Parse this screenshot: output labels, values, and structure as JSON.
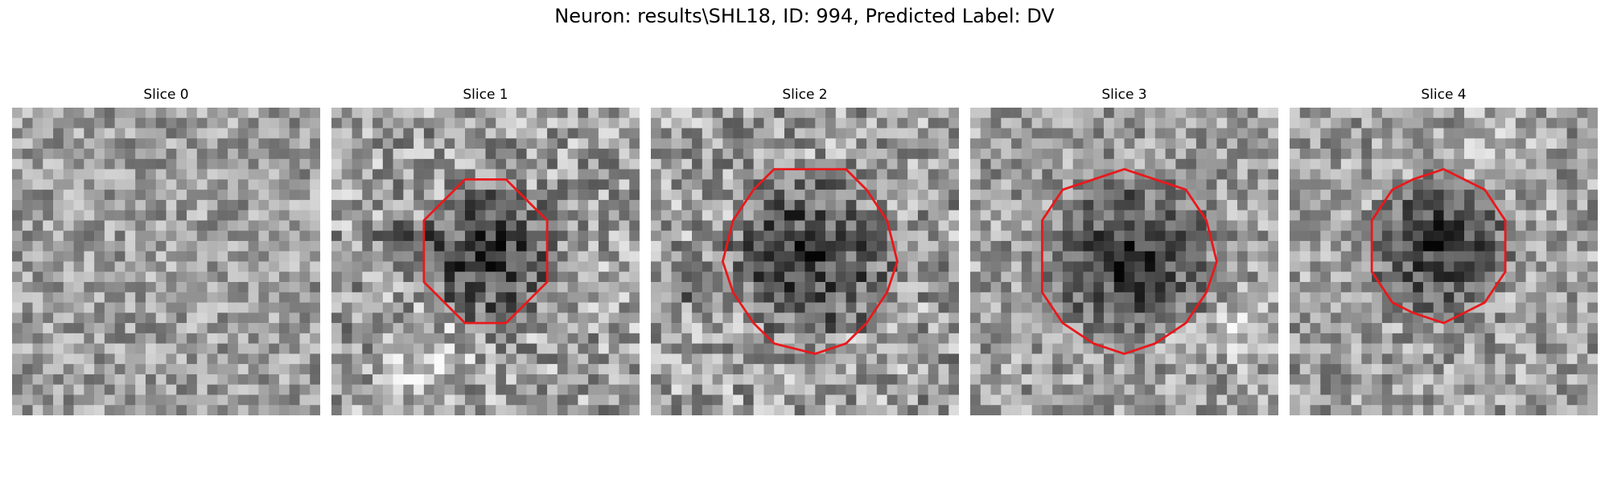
{
  "figure": {
    "title": "Neuron: results\\SHL18, ID: 994, Predicted Label: DV"
  },
  "panels": [
    {
      "title": "Slice 0",
      "contour": false,
      "contrast": "low"
    },
    {
      "title": "Slice 1",
      "contour": true,
      "contrast": "high"
    },
    {
      "title": "Slice 2",
      "contour": true,
      "contrast": "high"
    },
    {
      "title": "Slice 3",
      "contour": true,
      "contrast": "medium"
    },
    {
      "title": "Slice 4",
      "contour": true,
      "contrast": "medium"
    }
  ],
  "colors": {
    "contour": "#e8191c",
    "colormap": "grayscale"
  }
}
